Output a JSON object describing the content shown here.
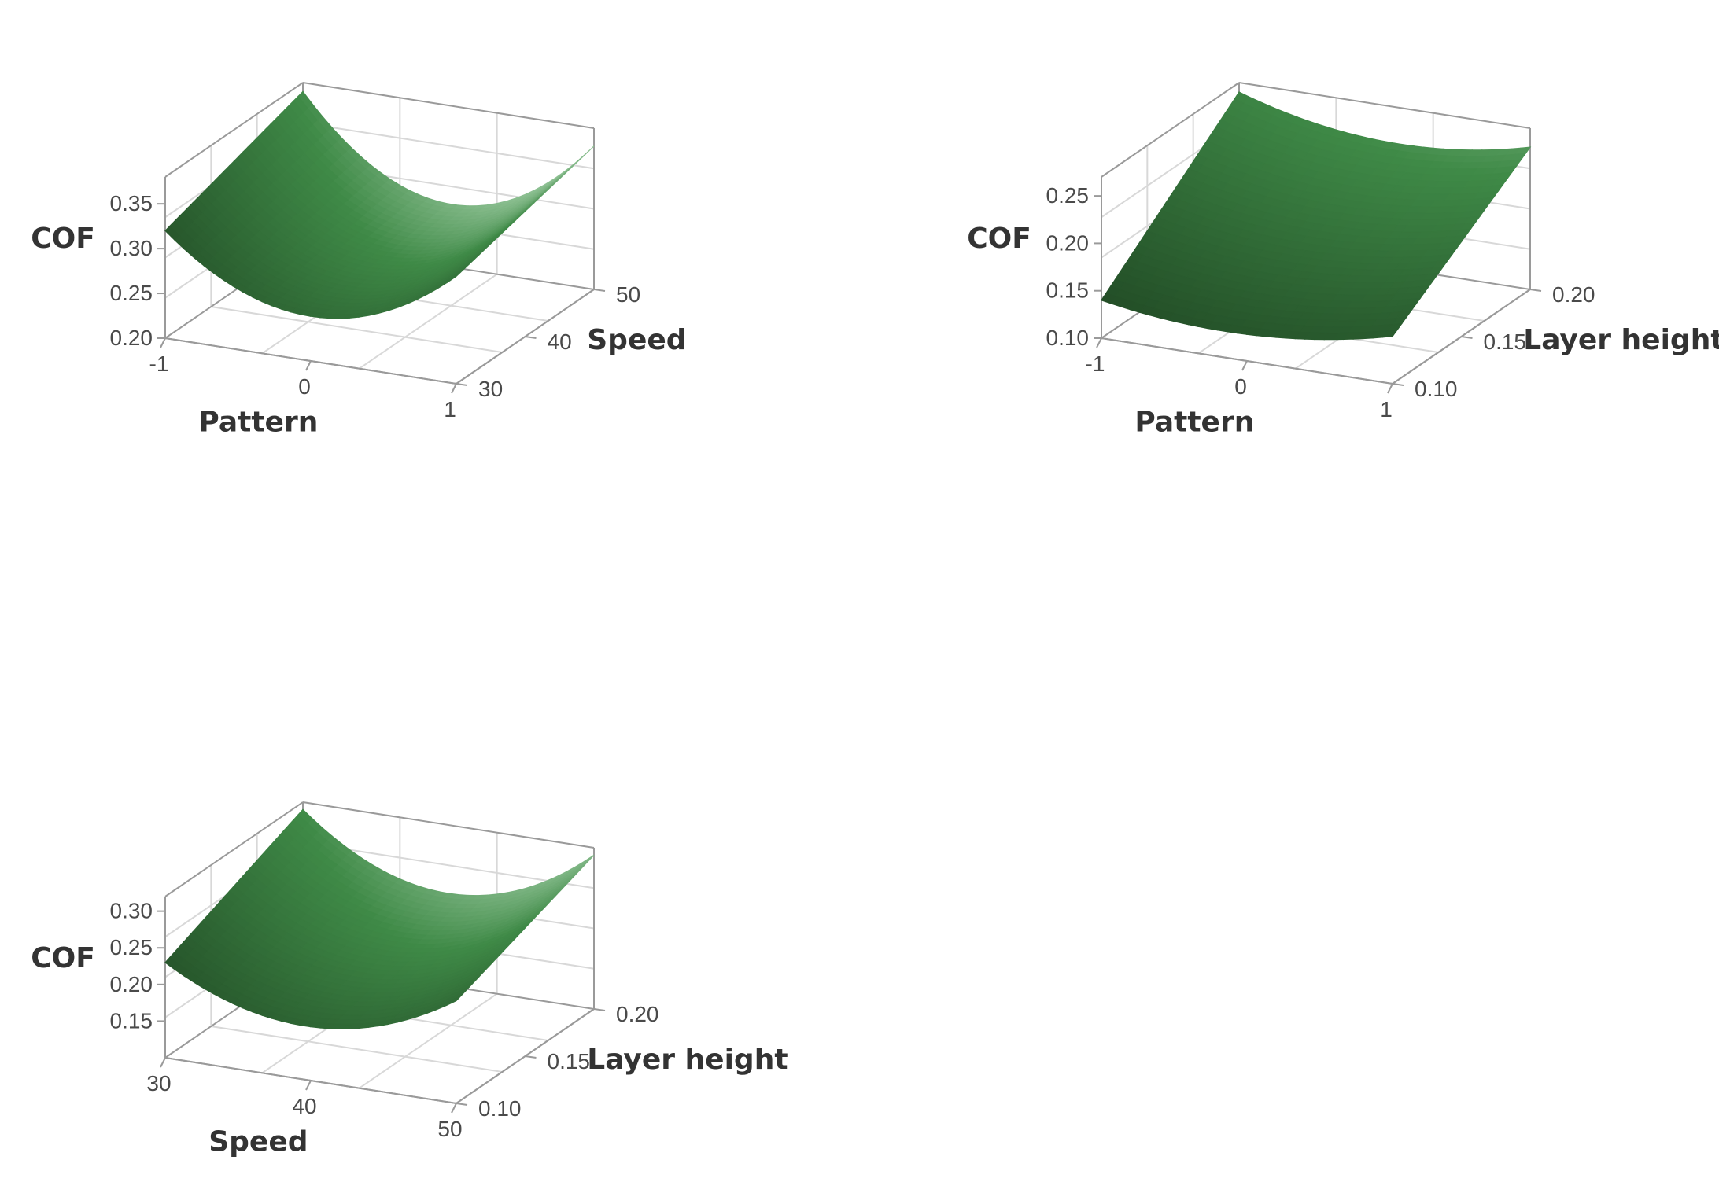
{
  "chart_data": [
    {
      "type": "surface",
      "zlabel": "COF",
      "xlabel": "Pattern",
      "ylabel": "Speed",
      "x_ticks": [
        "-1",
        "0",
        "1"
      ],
      "y_ticks": [
        "30",
        "40",
        "50"
      ],
      "z_ticks": [
        "0.20",
        "0.25",
        "0.30",
        "0.35"
      ],
      "x_range": [
        -1,
        1
      ],
      "y_range": [
        30,
        50
      ],
      "z_range": [
        0.2,
        0.38
      ],
      "corner_values": {
        "x_min_y_min": 0.32,
        "x_max_y_min": 0.32,
        "x_min_y_max": 0.37,
        "x_max_y_max": 0.36
      },
      "center_value": 0.26
    },
    {
      "type": "surface",
      "zlabel": "COF",
      "xlabel": "Pattern",
      "ylabel": "Layer height",
      "x_ticks": [
        "-1",
        "0",
        "1"
      ],
      "y_ticks": [
        "0.10",
        "0.15",
        "0.20"
      ],
      "z_ticks": [
        "0.10",
        "0.15",
        "0.20",
        "0.25"
      ],
      "x_range": [
        -1,
        1
      ],
      "y_range": [
        0.1,
        0.2
      ],
      "z_range": [
        0.1,
        0.27
      ],
      "corner_values": {
        "x_min_y_min": 0.14,
        "x_max_y_min": 0.15,
        "x_min_y_max": 0.26,
        "x_max_y_max": 0.25
      },
      "center_value": 0.18
    },
    {
      "type": "surface",
      "zlabel": "COF",
      "xlabel": "Speed",
      "ylabel": "Layer height",
      "x_ticks": [
        "30",
        "40",
        "50"
      ],
      "y_ticks": [
        "0.10",
        "0.15",
        "0.20"
      ],
      "z_ticks": [
        "0.15",
        "0.20",
        "0.25",
        "0.30"
      ],
      "x_range": [
        30,
        50
      ],
      "y_range": [
        0.1,
        0.2
      ],
      "z_range": [
        0.1,
        0.32
      ],
      "corner_values": {
        "x_min_y_min": 0.23,
        "x_max_y_min": 0.24,
        "x_min_y_max": 0.31,
        "x_max_y_max": 0.31
      },
      "center_value": 0.2
    }
  ],
  "colors": {
    "surface_dark": "#163218",
    "surface_mid": "#3f8a47",
    "surface_light": "#e8ffea",
    "frame": "#9a9a9a",
    "grid": "#d8d8d8"
  }
}
